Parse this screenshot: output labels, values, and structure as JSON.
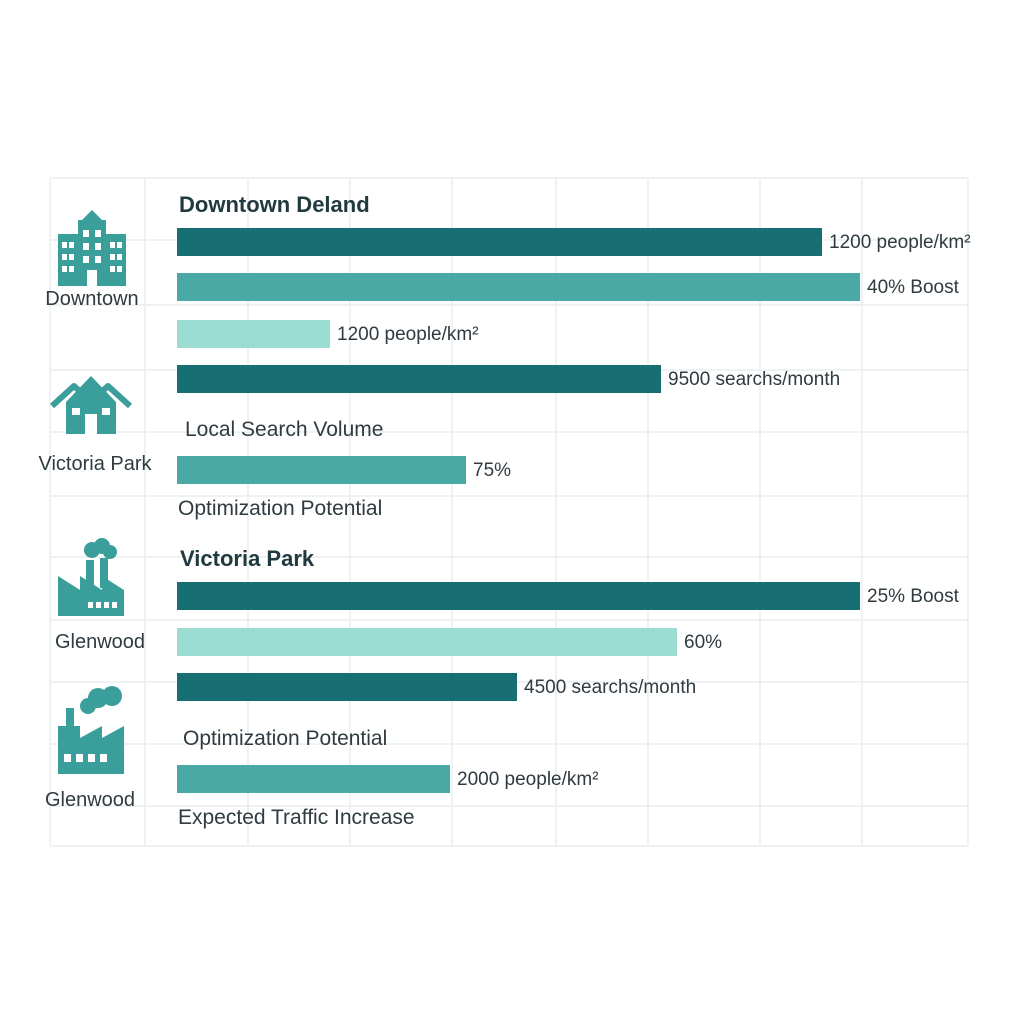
{
  "colors": {
    "dark": "#176f73",
    "mid": "#4aa8a5",
    "light": "#9bddd3",
    "icon": "#3a9e9a",
    "grid": "#e9eeee"
  },
  "areas": [
    {
      "name": "Downtown",
      "icon": "office-building-icon"
    },
    {
      "name": "Victoria Park",
      "icon": "houses-icon"
    },
    {
      "name": "Glenwood",
      "icon": "factory-icon"
    },
    {
      "name": "Glenwood",
      "icon": "factory-icon"
    }
  ],
  "headings": [
    "Downtown Deland",
    "Victoria Park"
  ],
  "captions": [
    "Local Search Volume",
    "Optimization Potential",
    "Optimization Potential",
    "Expected Traffic Increase"
  ],
  "chart_data": {
    "type": "bar",
    "orientation": "horizontal",
    "bars": [
      {
        "value": 1200,
        "label": "1200 people/km²",
        "tone": "dark"
      },
      {
        "value": 40,
        "label": "40% Boost",
        "tone": "mid"
      },
      {
        "value": 1200,
        "label": "1200 people/km²",
        "tone": "light"
      },
      {
        "value": 9500,
        "label": "9500 searchs/month",
        "tone": "dark"
      },
      {
        "value": 75,
        "label": "75%",
        "tone": "mid"
      },
      {
        "value": 25,
        "label": "25% Boost",
        "tone": "dark"
      },
      {
        "value": 60,
        "label": "60%",
        "tone": "light"
      },
      {
        "value": 4500,
        "label": "4500 searchs/month",
        "tone": "dark"
      },
      {
        "value": 2000,
        "label": "2000 people/km²",
        "tone": "mid"
      }
    ],
    "grid": true
  }
}
